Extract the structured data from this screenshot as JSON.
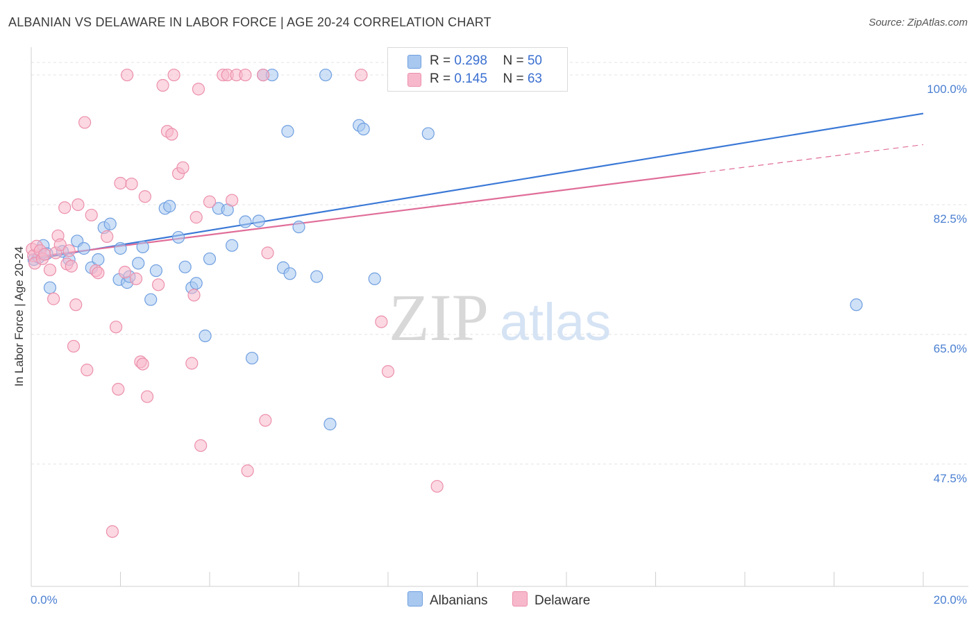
{
  "header": {
    "title": "ALBANIAN VS DELAWARE IN LABOR FORCE | AGE 20-24 CORRELATION CHART",
    "source": "Source: ZipAtlas.com"
  },
  "legend": {
    "rows": [
      {
        "r_label": "R = ",
        "r_value": "0.298",
        "n_label": "N = ",
        "n_value": "50"
      },
      {
        "r_label": "R = ",
        "r_value": "0.145",
        "n_label": "N = ",
        "n_value": "63"
      }
    ],
    "bottom": [
      "Albanians",
      "Delaware"
    ]
  },
  "colors": {
    "albanians_fill": "#a8c8f0",
    "albanians_stroke": "#6f9fe0",
    "albanians_line": "#3a78d6",
    "delaware_fill": "#f7b8cb",
    "delaware_stroke": "#ec8fab",
    "delaware_line": "#e06d98",
    "tick_text": "#4a7fd1",
    "grid": "#e3e3e3"
  },
  "chart_data": {
    "type": "scatter",
    "title": "ALBANIAN VS DELAWARE IN LABOR FORCE | AGE 20-24 CORRELATION CHART",
    "xlabel": "",
    "ylabel": "In Labor Force | Age 20-24",
    "xlim": [
      0,
      20
    ],
    "ylim": [
      31,
      104.5
    ],
    "x_tick_labels": [
      "0.0%",
      "20.0%"
    ],
    "y_ticks": [
      47.5,
      65.0,
      82.5,
      100.0
    ],
    "y_tick_labels": [
      "47.5%",
      "65.0%",
      "82.5%",
      "100.0%"
    ],
    "grid": true,
    "watermark": "ZIPatlas",
    "series": [
      {
        "name": "Albanians",
        "r": 0.298,
        "n": 50,
        "trend": {
          "x": [
            0,
            20
          ],
          "y": [
            75.1,
            94.8
          ],
          "dashed_from": null
        },
        "points": [
          [
            0.06,
            75.1
          ],
          [
            0.17,
            75.4
          ],
          [
            0.27,
            77.0
          ],
          [
            0.35,
            75.9
          ],
          [
            0.42,
            71.3
          ],
          [
            0.7,
            76.2
          ],
          [
            0.85,
            75.1
          ],
          [
            1.03,
            77.6
          ],
          [
            1.18,
            76.6
          ],
          [
            1.35,
            74.0
          ],
          [
            1.5,
            75.1
          ],
          [
            1.63,
            79.4
          ],
          [
            1.77,
            79.9
          ],
          [
            1.97,
            72.4
          ],
          [
            2.0,
            76.6
          ],
          [
            2.15,
            72.0
          ],
          [
            2.2,
            72.8
          ],
          [
            2.4,
            74.6
          ],
          [
            2.5,
            76.8
          ],
          [
            2.68,
            69.7
          ],
          [
            2.8,
            73.6
          ],
          [
            3.0,
            82.0
          ],
          [
            3.1,
            82.3
          ],
          [
            3.3,
            78.1
          ],
          [
            3.45,
            74.1
          ],
          [
            3.6,
            71.3
          ],
          [
            3.7,
            71.9
          ],
          [
            3.9,
            64.8
          ],
          [
            4.0,
            75.2
          ],
          [
            4.2,
            82.0
          ],
          [
            4.4,
            81.8
          ],
          [
            4.5,
            77.0
          ],
          [
            4.8,
            80.2
          ],
          [
            4.95,
            61.8
          ],
          [
            5.1,
            80.3
          ],
          [
            5.2,
            100.0
          ],
          [
            5.4,
            100.0
          ],
          [
            5.65,
            74.0
          ],
          [
            5.75,
            92.4
          ],
          [
            5.8,
            73.2
          ],
          [
            6.0,
            79.5
          ],
          [
            6.4,
            72.8
          ],
          [
            6.6,
            100.0
          ],
          [
            6.7,
            52.9
          ],
          [
            7.35,
            93.2
          ],
          [
            7.45,
            92.7
          ],
          [
            7.7,
            72.5
          ],
          [
            8.2,
            100.0
          ],
          [
            8.9,
            92.1
          ],
          [
            18.5,
            69.0
          ]
        ]
      },
      {
        "name": "Delaware",
        "r": 0.145,
        "n": 63,
        "trend": {
          "x": [
            0,
            20
          ],
          "y": [
            75.4,
            90.6
          ],
          "dashed_from": 15.0
        },
        "points": [
          [
            0.02,
            76.5
          ],
          [
            0.05,
            75.6
          ],
          [
            0.08,
            74.6
          ],
          [
            0.12,
            76.9
          ],
          [
            0.2,
            76.3
          ],
          [
            0.25,
            75.2
          ],
          [
            0.3,
            75.8
          ],
          [
            0.42,
            73.7
          ],
          [
            0.5,
            69.8
          ],
          [
            0.55,
            76.0
          ],
          [
            0.6,
            78.3
          ],
          [
            0.65,
            77.1
          ],
          [
            0.75,
            82.1
          ],
          [
            0.8,
            74.5
          ],
          [
            0.85,
            76.3
          ],
          [
            0.9,
            74.2
          ],
          [
            0.95,
            63.4
          ],
          [
            1.0,
            69.0
          ],
          [
            1.05,
            82.5
          ],
          [
            1.2,
            93.6
          ],
          [
            1.25,
            60.2
          ],
          [
            1.35,
            81.1
          ],
          [
            1.45,
            73.6
          ],
          [
            1.5,
            73.3
          ],
          [
            1.7,
            78.2
          ],
          [
            1.82,
            38.4
          ],
          [
            1.9,
            66.0
          ],
          [
            1.95,
            57.6
          ],
          [
            2.0,
            85.4
          ],
          [
            2.1,
            73.4
          ],
          [
            2.15,
            100.0
          ],
          [
            2.25,
            85.3
          ],
          [
            2.35,
            72.5
          ],
          [
            2.45,
            61.3
          ],
          [
            2.5,
            61.0
          ],
          [
            2.55,
            83.6
          ],
          [
            2.6,
            56.6
          ],
          [
            2.85,
            71.7
          ],
          [
            2.95,
            98.6
          ],
          [
            3.05,
            92.4
          ],
          [
            3.15,
            92.0
          ],
          [
            3.2,
            100.0
          ],
          [
            3.3,
            86.7
          ],
          [
            3.4,
            87.5
          ],
          [
            3.6,
            61.1
          ],
          [
            3.65,
            70.3
          ],
          [
            3.7,
            80.8
          ],
          [
            3.75,
            98.1
          ],
          [
            3.8,
            50.0
          ],
          [
            4.0,
            82.9
          ],
          [
            4.3,
            100.0
          ],
          [
            4.4,
            100.0
          ],
          [
            4.5,
            83.1
          ],
          [
            4.6,
            100.0
          ],
          [
            4.8,
            100.0
          ],
          [
            4.85,
            46.6
          ],
          [
            5.2,
            100.0
          ],
          [
            5.25,
            53.4
          ],
          [
            5.3,
            76.0
          ],
          [
            7.4,
            100.0
          ],
          [
            7.85,
            66.7
          ],
          [
            8.0,
            60.0
          ],
          [
            9.1,
            44.5
          ]
        ]
      }
    ]
  }
}
